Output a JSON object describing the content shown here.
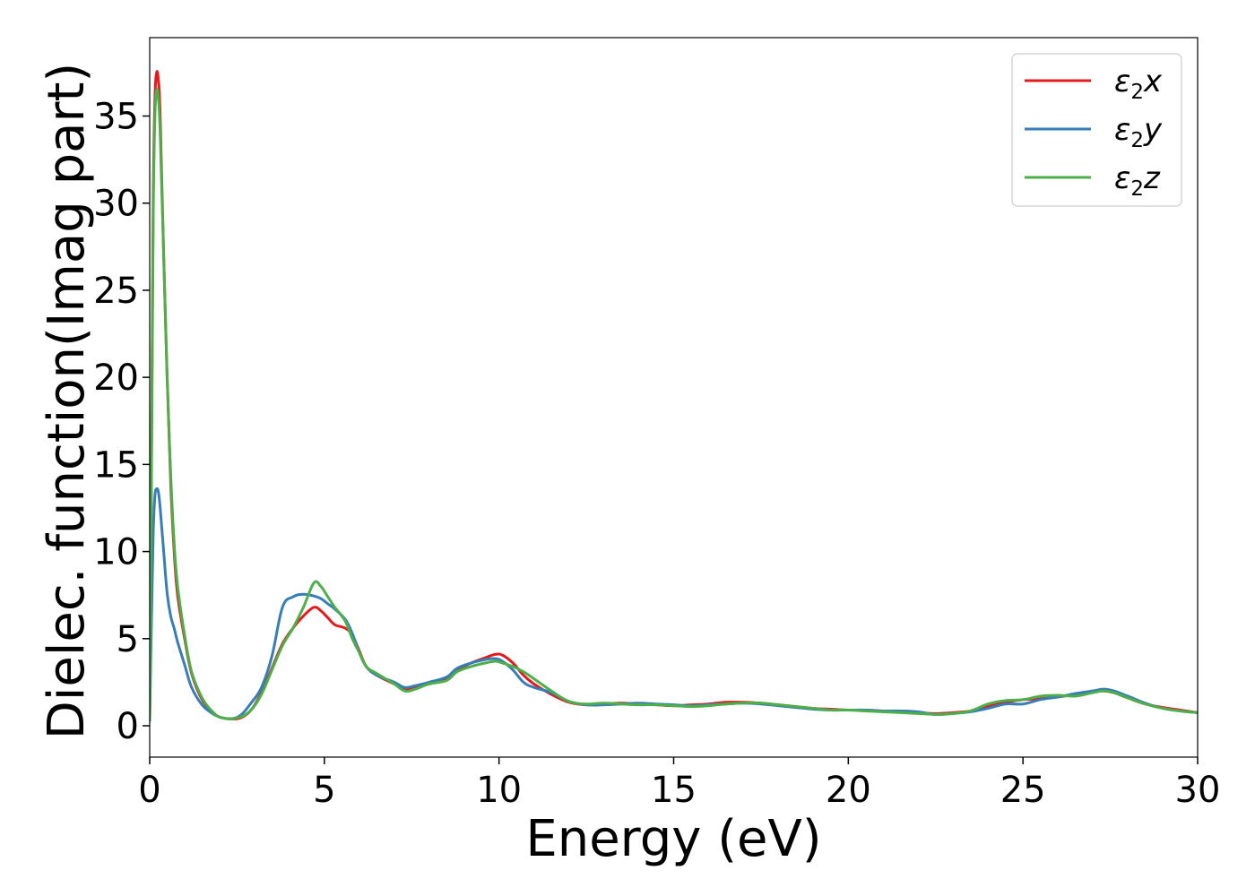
{
  "chart_data": {
    "type": "line",
    "title": "",
    "xlabel": "Energy (eV)",
    "ylabel": "Dielec. function(Imag part)",
    "xlim": [
      0,
      30
    ],
    "ylim": [
      -1.8,
      39.5
    ],
    "xticks": [
      0,
      5,
      10,
      15,
      20,
      25,
      30
    ],
    "yticks": [
      0,
      5,
      10,
      15,
      20,
      25,
      30,
      35
    ],
    "grid": false,
    "legend_position": "top-right",
    "series": [
      {
        "name": "ε₂x",
        "legend_base": "ε",
        "legend_sub": "2",
        "legend_suffix": "x",
        "color": "#e41a1c",
        "x": [
          0,
          0.05,
          0.1,
          0.15,
          0.2,
          0.25,
          0.3,
          0.4,
          0.5,
          0.6,
          0.7,
          0.8,
          1.0,
          1.2,
          1.5,
          1.8,
          2.0,
          2.3,
          2.6,
          2.9,
          3.2,
          3.5,
          3.8,
          4.1,
          4.4,
          4.7,
          4.9,
          5.1,
          5.3,
          5.6,
          5.8,
          6.0,
          6.2,
          6.5,
          7.0,
          7.3,
          7.6,
          8.0,
          8.5,
          8.8,
          9.2,
          9.6,
          9.9,
          10.1,
          10.4,
          10.7,
          11.0,
          11.5,
          12.0,
          12.5,
          13.0,
          13.5,
          14.0,
          14.5,
          15.0,
          15.5,
          16.0,
          16.5,
          17.0,
          17.5,
          18.0,
          18.5,
          19.0,
          19.5,
          20.0,
          20.5,
          21.0,
          21.5,
          22.0,
          22.5,
          23.0,
          23.5,
          24.0,
          24.5,
          25.0,
          25.5,
          26.0,
          26.5,
          27.0,
          27.3,
          27.6,
          28.0,
          28.5,
          29.0,
          29.5,
          30.0
        ],
        "y": [
          0.5,
          15,
          30,
          36,
          37.5,
          37,
          35,
          27,
          20,
          14,
          10,
          7.5,
          5.0,
          3.0,
          1.5,
          0.8,
          0.5,
          0.4,
          0.45,
          0.9,
          1.9,
          3.3,
          4.7,
          5.6,
          6.3,
          6.8,
          6.6,
          6.2,
          5.8,
          5.6,
          5.2,
          4.3,
          3.4,
          2.9,
          2.4,
          2.1,
          2.2,
          2.4,
          2.7,
          3.2,
          3.6,
          3.9,
          4.1,
          4.05,
          3.6,
          2.9,
          2.4,
          1.8,
          1.35,
          1.2,
          1.25,
          1.3,
          1.25,
          1.2,
          1.15,
          1.2,
          1.25,
          1.35,
          1.35,
          1.3,
          1.2,
          1.1,
          1.0,
          0.95,
          0.9,
          0.9,
          0.85,
          0.8,
          0.75,
          0.7,
          0.75,
          0.85,
          1.1,
          1.35,
          1.5,
          1.55,
          1.65,
          1.8,
          1.95,
          2.0,
          1.9,
          1.6,
          1.25,
          1.05,
          0.9,
          0.75
        ]
      },
      {
        "name": "ε₂y",
        "legend_base": "ε",
        "legend_sub": "2",
        "legend_suffix": "y",
        "color": "#377eb8",
        "x": [
          0,
          0.05,
          0.1,
          0.15,
          0.2,
          0.25,
          0.3,
          0.4,
          0.5,
          0.6,
          0.7,
          0.8,
          1.0,
          1.2,
          1.5,
          1.8,
          2.0,
          2.3,
          2.6,
          2.9,
          3.2,
          3.5,
          3.8,
          4.1,
          4.4,
          4.7,
          4.9,
          5.1,
          5.3,
          5.6,
          5.8,
          6.0,
          6.2,
          6.5,
          7.0,
          7.3,
          7.6,
          8.0,
          8.5,
          8.8,
          9.2,
          9.6,
          9.9,
          10.1,
          10.4,
          10.7,
          11.0,
          11.5,
          12.0,
          12.5,
          13.0,
          13.5,
          14.0,
          14.5,
          15.0,
          15.5,
          16.0,
          16.5,
          17.0,
          17.5,
          18.0,
          18.5,
          19.0,
          19.5,
          20.0,
          20.5,
          21.0,
          21.5,
          22.0,
          22.5,
          23.0,
          23.5,
          24.0,
          24.5,
          25.0,
          25.5,
          26.0,
          26.5,
          27.0,
          27.3,
          27.6,
          28.0,
          28.5,
          29.0,
          29.5,
          30.0
        ],
        "y": [
          0.3,
          6,
          11,
          13.2,
          13.6,
          13.4,
          12.5,
          10,
          7.6,
          6.3,
          5.6,
          4.8,
          3.5,
          2.2,
          1.2,
          0.7,
          0.5,
          0.4,
          0.6,
          1.3,
          2.2,
          4.0,
          6.8,
          7.4,
          7.55,
          7.45,
          7.3,
          7.0,
          6.7,
          6.1,
          5.3,
          4.2,
          3.4,
          2.9,
          2.5,
          2.2,
          2.3,
          2.5,
          2.8,
          3.3,
          3.6,
          3.8,
          3.85,
          3.7,
          3.2,
          2.5,
          2.2,
          1.9,
          1.4,
          1.2,
          1.2,
          1.25,
          1.3,
          1.25,
          1.2,
          1.15,
          1.2,
          1.25,
          1.3,
          1.25,
          1.15,
          1.05,
          0.95,
          0.9,
          0.9,
          0.9,
          0.85,
          0.85,
          0.8,
          0.65,
          0.7,
          0.8,
          1.0,
          1.25,
          1.25,
          1.5,
          1.65,
          1.85,
          2.0,
          2.1,
          2.0,
          1.7,
          1.3,
          1.0,
          0.85,
          0.75
        ]
      },
      {
        "name": "ε₂z",
        "legend_base": "ε",
        "legend_sub": "2",
        "legend_suffix": "z",
        "color": "#4daf4a",
        "x": [
          0,
          0.05,
          0.1,
          0.15,
          0.2,
          0.25,
          0.3,
          0.4,
          0.5,
          0.6,
          0.7,
          0.8,
          1.0,
          1.2,
          1.5,
          1.8,
          2.0,
          2.3,
          2.6,
          2.9,
          3.2,
          3.5,
          3.8,
          4.1,
          4.4,
          4.7,
          4.9,
          5.1,
          5.3,
          5.6,
          5.8,
          6.0,
          6.2,
          6.5,
          7.0,
          7.3,
          7.6,
          8.0,
          8.5,
          8.8,
          9.2,
          9.6,
          9.9,
          10.1,
          10.4,
          10.7,
          11.0,
          11.5,
          12.0,
          12.5,
          13.0,
          13.5,
          14.0,
          14.5,
          15.0,
          15.5,
          16.0,
          16.5,
          17.0,
          17.5,
          18.0,
          18.5,
          19.0,
          19.5,
          20.0,
          20.5,
          21.0,
          21.5,
          22.0,
          22.5,
          23.0,
          23.5,
          24.0,
          24.5,
          25.0,
          25.5,
          26.0,
          26.5,
          27.0,
          27.3,
          27.6,
          28.0,
          28.5,
          29.0,
          29.5,
          30.0
        ],
        "y": [
          0.4,
          14,
          29,
          35,
          36.5,
          36,
          34,
          27,
          20,
          14.5,
          10.5,
          8,
          5.2,
          3.1,
          1.6,
          0.8,
          0.5,
          0.4,
          0.5,
          0.9,
          1.8,
          3.2,
          4.6,
          5.6,
          6.8,
          8.2,
          8.0,
          7.4,
          6.8,
          6.0,
          5.0,
          4.2,
          3.4,
          3.0,
          2.4,
          2.0,
          2.1,
          2.4,
          2.6,
          3.1,
          3.4,
          3.6,
          3.7,
          3.6,
          3.4,
          3.1,
          2.7,
          2.0,
          1.4,
          1.25,
          1.3,
          1.25,
          1.2,
          1.2,
          1.15,
          1.1,
          1.15,
          1.25,
          1.3,
          1.3,
          1.2,
          1.1,
          1.0,
          0.9,
          0.9,
          0.85,
          0.8,
          0.75,
          0.7,
          0.65,
          0.7,
          0.85,
          1.25,
          1.45,
          1.5,
          1.7,
          1.75,
          1.7,
          1.9,
          2.0,
          1.9,
          1.6,
          1.25,
          1.0,
          0.85,
          0.75
        ]
      }
    ]
  }
}
